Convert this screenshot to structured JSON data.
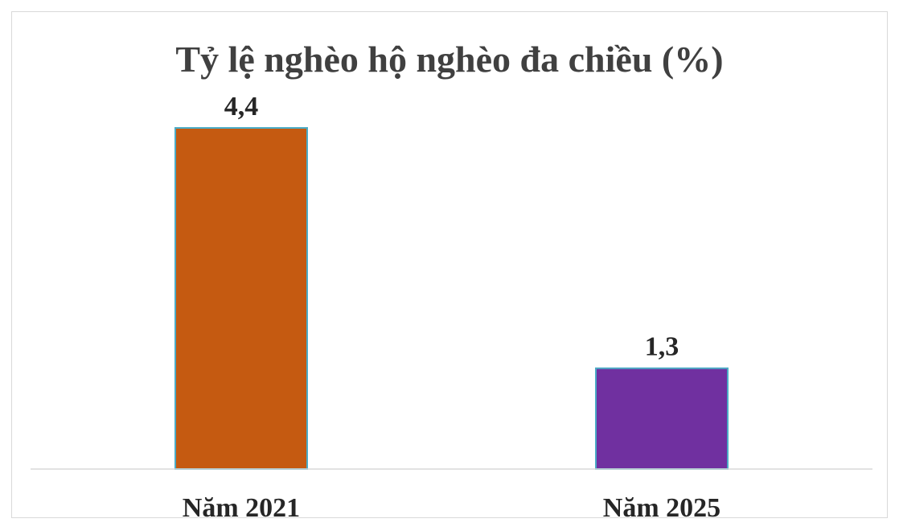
{
  "chart_data": {
    "type": "bar",
    "title": "Tỷ lệ nghèo hộ nghèo đa chiều (%)",
    "categories": [
      "Năm 2021",
      "Năm 2025"
    ],
    "values": [
      4.4,
      1.3
    ],
    "data_labels": [
      "4,4",
      "1,3"
    ],
    "bar_colors": [
      "#C55A11",
      "#7030A0"
    ],
    "bar_outline_color": "#4BACC6",
    "axis_color": "#d9d9d9",
    "ylim": [
      0,
      4.4
    ],
    "grid": false,
    "legend": "none",
    "xlabel": "",
    "ylabel": ""
  }
}
